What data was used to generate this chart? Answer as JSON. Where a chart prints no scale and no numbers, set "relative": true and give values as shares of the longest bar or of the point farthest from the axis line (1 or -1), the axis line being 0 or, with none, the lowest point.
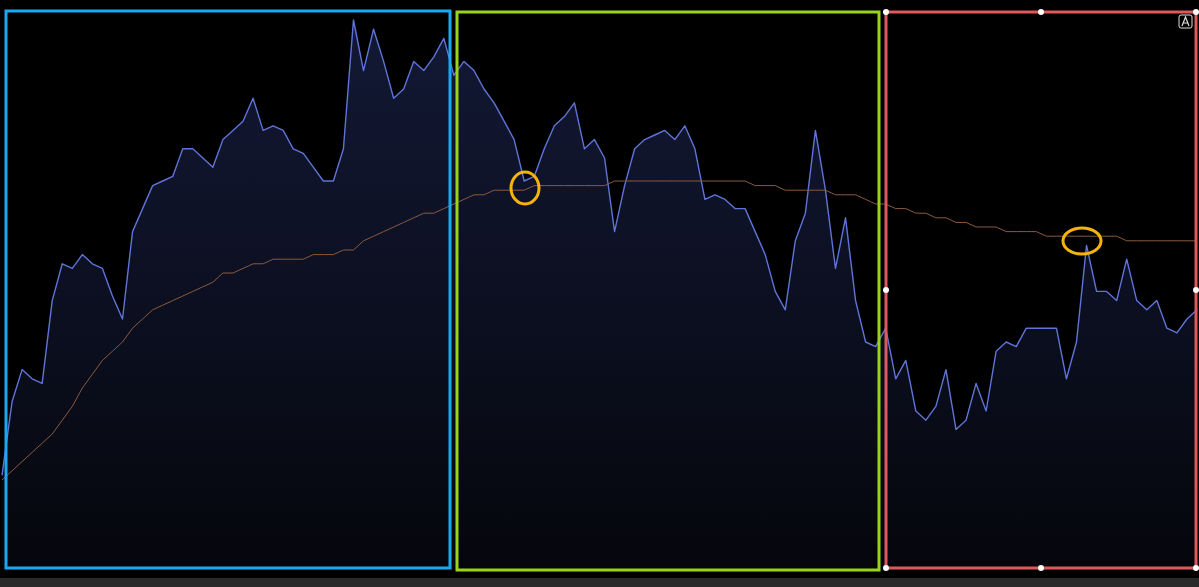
{
  "chart_data": {
    "type": "area",
    "relative": true,
    "categories": [
      null,
      null,
      null,
      null,
      null,
      null,
      null,
      null,
      null,
      null,
      null,
      null,
      null,
      null,
      null,
      null,
      null,
      null,
      null,
      null,
      null,
      null,
      null,
      null,
      null,
      null,
      null,
      null,
      null,
      null,
      null,
      null,
      null,
      null,
      null,
      null,
      null,
      null,
      null,
      null,
      null,
      null,
      null,
      null,
      null,
      null,
      null,
      null,
      null,
      null,
      null,
      null,
      null,
      null,
      null,
      null,
      null,
      null,
      null,
      null,
      null,
      null,
      null,
      null,
      null,
      null,
      null,
      null,
      null,
      null,
      null,
      null,
      null,
      null,
      null,
      null,
      null,
      null,
      null,
      null,
      null,
      null,
      null,
      null,
      null,
      null,
      null,
      null,
      null,
      null,
      null,
      null,
      null,
      null,
      null,
      null,
      null,
      null,
      null,
      null,
      null,
      null,
      null,
      null,
      null,
      null,
      null,
      null,
      null,
      null,
      null,
      null,
      null,
      null,
      null,
      null,
      null,
      null,
      null,
      null
    ],
    "series": [
      {
        "color": "#5f74d8",
        "values": [
          0.01,
          0.17,
          0.24,
          0.22,
          0.21,
          0.39,
          0.47,
          0.46,
          0.49,
          0.47,
          0.46,
          0.4,
          0.35,
          0.54,
          0.59,
          0.64,
          0.65,
          0.66,
          0.72,
          0.72,
          0.7,
          0.68,
          0.74,
          0.76,
          0.78,
          0.83,
          0.76,
          0.77,
          0.76,
          0.72,
          0.71,
          0.68,
          0.65,
          0.65,
          0.72,
          1,
          0.89,
          0.98,
          0.91,
          0.83,
          0.85,
          0.91,
          0.89,
          0.92,
          0.96,
          0.88,
          0.91,
          0.89,
          0.85,
          0.82,
          0.78,
          0.74,
          0.65,
          0.66,
          0.72,
          0.77,
          0.79,
          0.82,
          0.72,
          0.74,
          0.7,
          0.54,
          0.64,
          0.72,
          0.74,
          0.75,
          0.76,
          0.74,
          0.77,
          0.72,
          0.61,
          0.62,
          0.61,
          0.59,
          0.59,
          0.54,
          0.49,
          0.41,
          0.37,
          0.52,
          0.58,
          0.76,
          0.63,
          0.46,
          0.57,
          0.39,
          0.3,
          0.29,
          0.33,
          0.22,
          0.26,
          0.15,
          0.13,
          0.16,
          0.24,
          0.11,
          0.13,
          0.21,
          0.15,
          0.28,
          0.3,
          0.29,
          0.33,
          0.33,
          0.33,
          0.33,
          0.22,
          0.3,
          0.51,
          0.41,
          0.41,
          0.39,
          0.48,
          0.39,
          0.37,
          0.39,
          0.33,
          0.32,
          0.35,
          0.37
        ]
      },
      {
        "type": "line",
        "color": "#8a5a3c",
        "values": [
          0,
          0.02,
          0.04,
          0.06,
          0.08,
          0.1,
          0.13,
          0.16,
          0.2,
          0.23,
          0.26,
          0.28,
          0.3,
          0.33,
          0.35,
          0.37,
          0.38,
          0.39,
          0.4,
          0.41,
          0.42,
          0.43,
          0.45,
          0.45,
          0.46,
          0.47,
          0.47,
          0.48,
          0.48,
          0.48,
          0.48,
          0.49,
          0.49,
          0.49,
          0.5,
          0.5,
          0.52,
          0.53,
          0.54,
          0.55,
          0.56,
          0.57,
          0.58,
          0.58,
          0.59,
          0.6,
          0.61,
          0.62,
          0.62,
          0.63,
          0.63,
          0.63,
          0.63,
          0.64,
          0.64,
          0.64,
          0.64,
          0.64,
          0.64,
          0.64,
          0.64,
          0.65,
          0.65,
          0.65,
          0.65,
          0.65,
          0.65,
          0.65,
          0.65,
          0.65,
          0.65,
          0.65,
          0.65,
          0.65,
          0.65,
          0.64,
          0.64,
          0.64,
          0.63,
          0.63,
          0.63,
          0.63,
          0.63,
          0.62,
          0.62,
          0.62,
          0.61,
          0.6,
          0.6,
          0.59,
          0.59,
          0.58,
          0.58,
          0.57,
          0.57,
          0.56,
          0.56,
          0.55,
          0.55,
          0.55,
          0.54,
          0.54,
          0.54,
          0.54,
          0.53,
          0.53,
          0.53,
          0.53,
          0.53,
          0.53,
          0.53,
          0.53,
          0.52,
          0.52,
          0.52,
          0.52,
          0.52,
          0.52,
          0.52,
          0.52
        ]
      }
    ]
  }
}
